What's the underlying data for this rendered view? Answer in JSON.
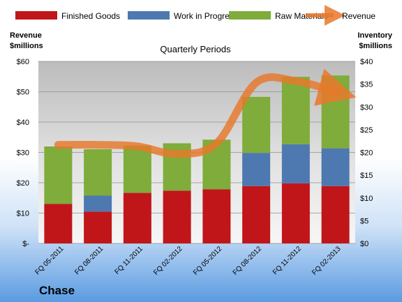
{
  "chart_data": {
    "type": "bar",
    "stacked": true,
    "title": "Quarterly Periods",
    "company": "Chase",
    "categories": [
      "FQ 05-2011",
      "FQ 08-2011",
      "FQ 11-2011",
      "FQ 02-2012",
      "FQ 05-2012",
      "FQ 08-2012",
      "FQ 11-2012",
      "FQ 02-2013"
    ],
    "left_axis": {
      "label_line1": "Revenue",
      "label_line2": "$millions",
      "range": [
        0,
        60
      ],
      "ticks": [
        0,
        10,
        20,
        30,
        40,
        50,
        60
      ],
      "tick_labels": [
        "$-",
        "$10",
        "$20",
        "$30",
        "$40",
        "$50",
        "$60"
      ]
    },
    "right_axis": {
      "label_line1": "Inventory",
      "label_line2": "$millions",
      "range": [
        0,
        40
      ],
      "ticks": [
        0,
        5,
        10,
        15,
        20,
        25,
        30,
        35,
        40
      ],
      "tick_labels": [
        "$0",
        "$5",
        "$10",
        "$15",
        "$20",
        "$25",
        "$30",
        "$35",
        "$40"
      ]
    },
    "series": [
      {
        "name": "Finished Goods",
        "axis": "right",
        "color": "#c0161a",
        "values": [
          8.7,
          7.0,
          11.1,
          11.6,
          11.9,
          12.6,
          13.2,
          12.6
        ]
      },
      {
        "name": "Work in Progress",
        "axis": "right",
        "color": "#4e78b0",
        "values": [
          0,
          3.5,
          0,
          0,
          0,
          7.3,
          8.6,
          8.3
        ]
      },
      {
        "name": "Raw Materials",
        "axis": "right",
        "color": "#7fac3a",
        "values": [
          12.6,
          10.2,
          10.4,
          10.4,
          10.9,
          12.3,
          14.8,
          16.0
        ]
      },
      {
        "name": "Revenue",
        "axis": "left",
        "type": "line",
        "color": "#e8782b",
        "values": [
          32.5,
          32.5,
          32,
          29.5,
          33,
          53,
          53.5,
          50
        ]
      }
    ],
    "grid": true,
    "legend_position": "top"
  }
}
